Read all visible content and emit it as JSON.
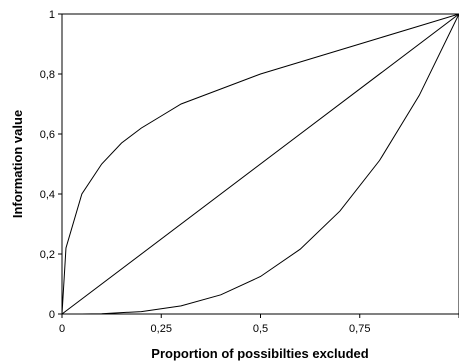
{
  "chart_data": {
    "type": "line",
    "title": "",
    "xlabel": "Proportion of possibilties excluded",
    "ylabel": "Information value",
    "xlim": [
      0,
      1
    ],
    "ylim": [
      0,
      1
    ],
    "x_ticks": [
      "0",
      "0,25",
      "0,5",
      "0,75",
      ""
    ],
    "y_ticks": [
      "0",
      "0,2",
      "0,4",
      "0,6",
      "0,8",
      "1"
    ],
    "grid": false,
    "legend": "none",
    "series": [
      {
        "x": [
          0,
          0.01,
          0.05,
          0.1,
          0.15,
          0.2,
          0.25,
          0.3,
          0.4,
          0.5,
          0.6,
          0.7,
          0.8,
          0.9,
          1
        ],
        "y": [
          0,
          0.22,
          0.4,
          0.5,
          0.57,
          0.62,
          0.66,
          0.7,
          0.75,
          0.8,
          0.84,
          0.88,
          0.92,
          0.96,
          1
        ]
      },
      {
        "x": [
          0,
          1
        ],
        "y": [
          0,
          1
        ]
      },
      {
        "x": [
          0,
          0.05,
          0.1,
          0.2,
          0.3,
          0.4,
          0.5,
          0.6,
          0.7,
          0.8,
          0.9,
          1
        ],
        "y": [
          0,
          0,
          0.001,
          0.008,
          0.027,
          0.064,
          0.125,
          0.216,
          0.343,
          0.512,
          0.729,
          1
        ]
      }
    ]
  }
}
